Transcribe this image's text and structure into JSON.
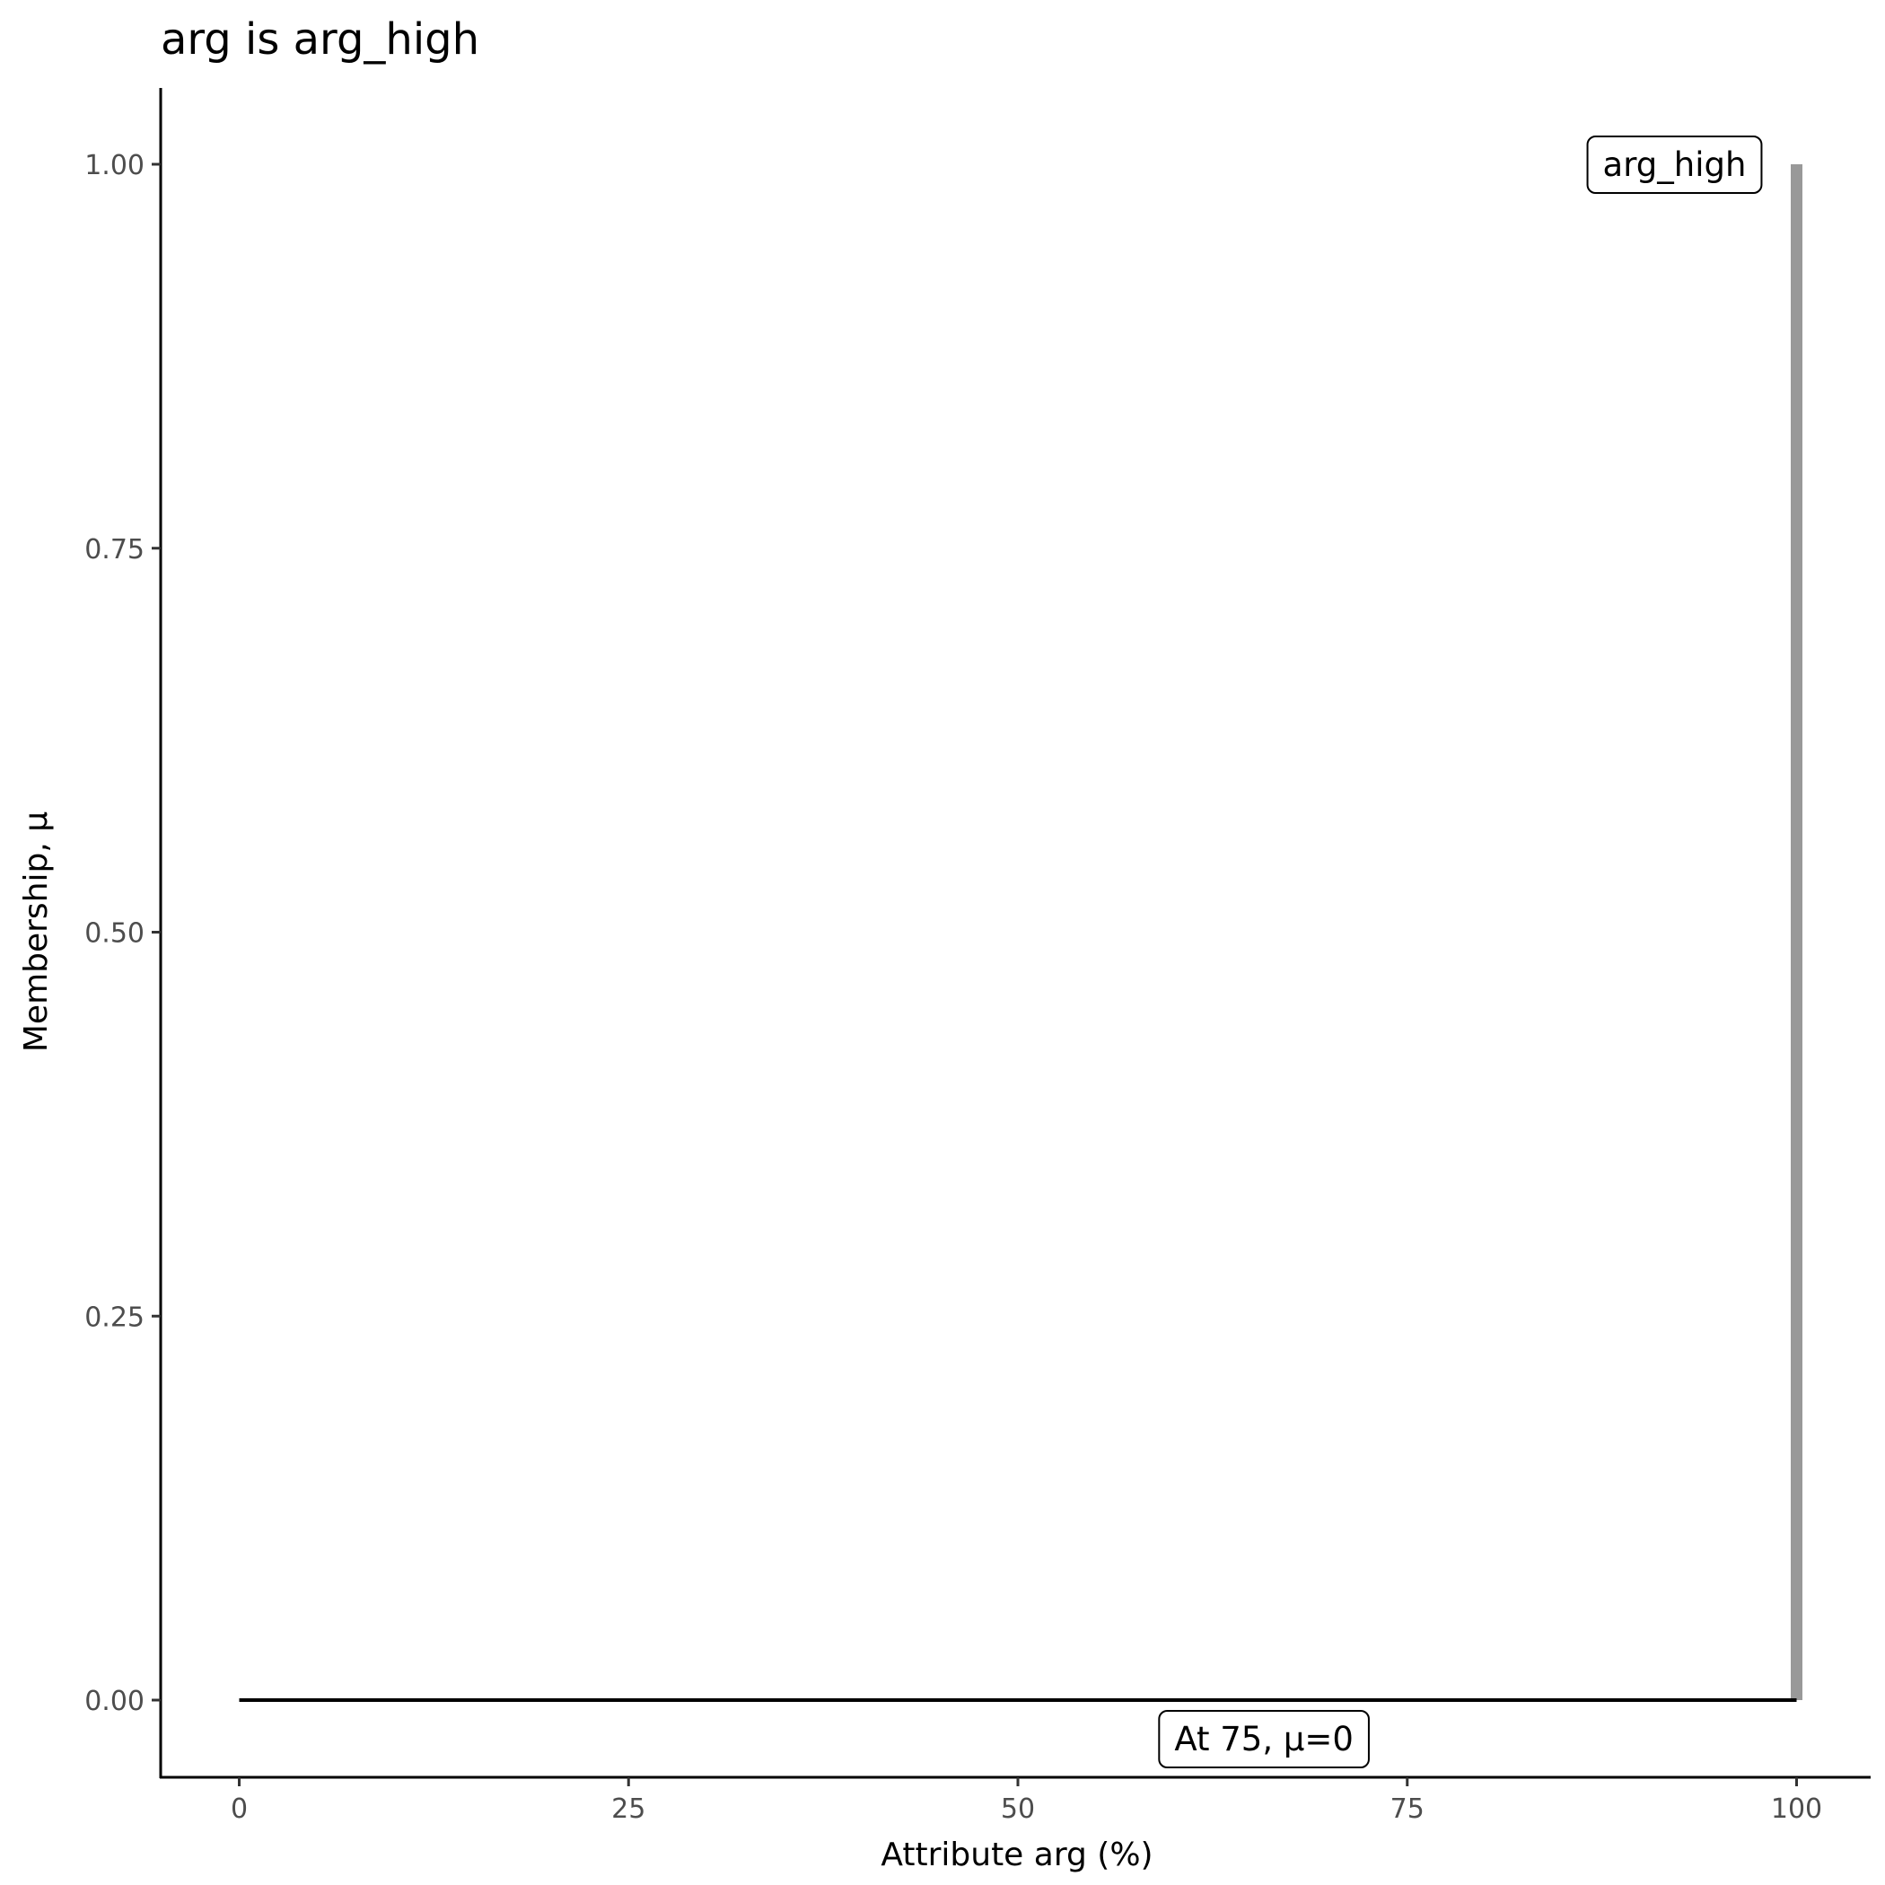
{
  "chart_data": {
    "type": "line",
    "title": "arg is arg_high",
    "xlabel": "Attribute arg (%)",
    "ylabel": "Membership, μ",
    "xlim": [
      -5,
      105
    ],
    "ylim": [
      -0.05,
      1.05
    ],
    "x_ticks": [
      0,
      25,
      50,
      75,
      100
    ],
    "x_tick_labels": [
      "0",
      "25",
      "50",
      "75",
      "100"
    ],
    "y_ticks": [
      0,
      0.25,
      0.5,
      0.75,
      1
    ],
    "y_tick_labels": [
      "0.00",
      "0.25",
      "0.50",
      "0.75",
      "1.00"
    ],
    "grid": false,
    "series": [
      {
        "name": "arg_high",
        "color": "#999999",
        "points": [
          [
            100,
            0
          ],
          [
            100,
            1
          ]
        ]
      },
      {
        "color": "#000000",
        "points": [
          [
            0,
            0
          ],
          [
            100,
            0
          ]
        ]
      }
    ],
    "annotations": [
      {
        "text": "arg_high",
        "x": 100,
        "y": 1,
        "anchor": "right"
      },
      {
        "text": "At 75, μ=0",
        "x": 65.8,
        "y": 0,
        "anchor": "below"
      }
    ]
  }
}
